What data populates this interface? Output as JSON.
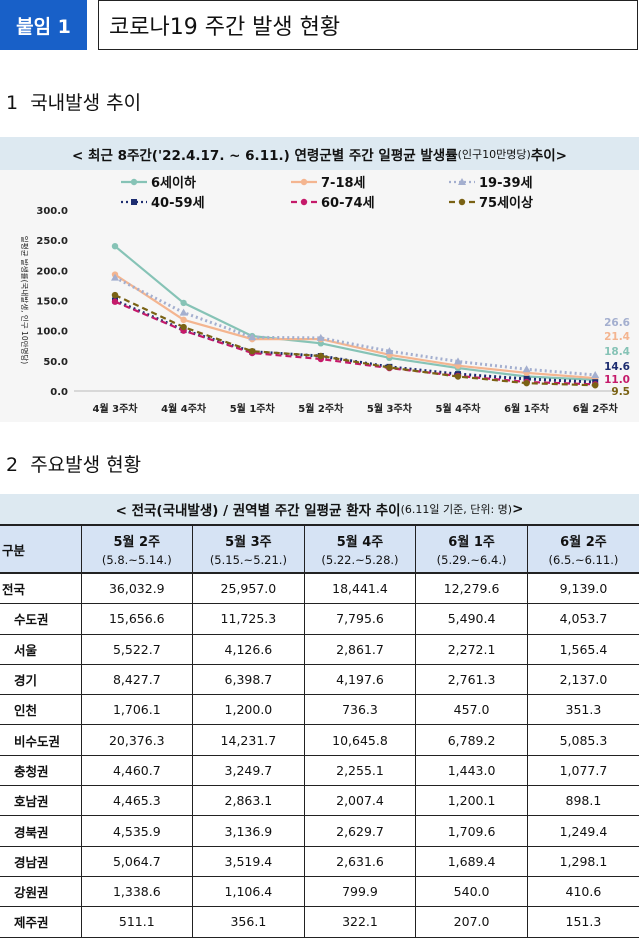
{
  "header": {
    "badge": "붙임 1",
    "title": "코로나19 주간 발생 현황"
  },
  "section1": {
    "number": "1",
    "title": "국내발생 추이"
  },
  "section2": {
    "number": "2",
    "title": "주요발생 현황"
  },
  "chart_panel": {
    "title_main": "< 최근 8주간('22.4.17. ~ 6.11.) 연령군별 주간 일평균 발생률",
    "title_small": "(인구10만명당)",
    "title_end": " 추이>"
  },
  "chart_data": {
    "type": "line",
    "ylabel": "일평균 발생률(국내발생, 인구 10만명당)",
    "ylim": [
      0,
      300
    ],
    "yticks": [
      "0.0",
      "50.0",
      "100.0",
      "150.0",
      "200.0",
      "250.0",
      "300.0"
    ],
    "categories": [
      "4월 3주차",
      "4월 4주차",
      "5월 1주차",
      "5월 2주차",
      "5월 3주차",
      "5월 4주차",
      "6월 1주차",
      "6월 2주차"
    ],
    "series": [
      {
        "name": "6세이하",
        "color": "#86c3b6",
        "dash": "solid",
        "marker": "circle",
        "values": [
          240,
          146,
          91,
          79,
          55,
          38,
          24,
          18.4
        ]
      },
      {
        "name": "7-18세",
        "color": "#f4b590",
        "dash": "solid",
        "marker": "circle",
        "values": [
          193,
          118,
          86,
          86,
          60,
          42,
          30,
          21.4
        ]
      },
      {
        "name": "19-39세",
        "color": "#a4afcf",
        "dash": "dotted",
        "marker": "triangle",
        "values": [
          188,
          130,
          89,
          88,
          66,
          49,
          36,
          26.6
        ]
      },
      {
        "name": "40-59세",
        "color": "#1d2d70",
        "dash": "dotted",
        "marker": "square",
        "values": [
          150,
          101,
          65,
          58,
          40,
          28,
          20,
          14.6
        ]
      },
      {
        "name": "60-74세",
        "color": "#c51a6a",
        "dash": "dashed",
        "marker": "circle",
        "values": [
          148,
          100,
          63,
          53,
          38,
          25,
          15,
          11.0
        ]
      },
      {
        "name": "75세이상",
        "color": "#7a6214",
        "dash": "dashed",
        "marker": "circle",
        "values": [
          159,
          106,
          66,
          58,
          39,
          24,
          13,
          9.5
        ]
      }
    ],
    "end_labels": [
      {
        "text": "26.6",
        "color": "#a4afcf"
      },
      {
        "text": "21.4",
        "color": "#f4b590"
      },
      {
        "text": "18.4",
        "color": "#86c3b6"
      },
      {
        "text": "14.6",
        "color": "#1d2d70"
      },
      {
        "text": "11.0",
        "color": "#c51a6a"
      },
      {
        "text": "9.5",
        "color": "#7a6214"
      }
    ]
  },
  "table": {
    "title_main": "< 전국(국내발생) / 권역별 주간 일평균 환자 추이 ",
    "title_small": "(6.11일 기준, 단위: 명)",
    "title_end": " >",
    "corner": "구분",
    "columns": [
      {
        "week": "5월 2주",
        "range": "(5.8.~5.14.)"
      },
      {
        "week": "5월 3주",
        "range": "(5.15.~5.21.)"
      },
      {
        "week": "5월 4주",
        "range": "(5.22.~5.28.)"
      },
      {
        "week": "6월 1주",
        "range": "(5.29.~6.4.)"
      },
      {
        "week": "6월 2주",
        "range": "(6.5.~6.11.)"
      }
    ],
    "rows": [
      {
        "name": "전국",
        "values": [
          "36,032.9",
          "25,957.0",
          "18,441.4",
          "12,279.6",
          "9,139.0"
        ]
      },
      {
        "name": "수도권",
        "values": [
          "15,656.6",
          "11,725.3",
          "7,795.6",
          "5,490.4",
          "4,053.7"
        ]
      },
      {
        "name": "서울",
        "values": [
          "5,522.7",
          "4,126.6",
          "2,861.7",
          "2,272.1",
          "1,565.4"
        ]
      },
      {
        "name": "경기",
        "values": [
          "8,427.7",
          "6,398.7",
          "4,197.6",
          "2,761.3",
          "2,137.0"
        ]
      },
      {
        "name": "인천",
        "values": [
          "1,706.1",
          "1,200.0",
          "736.3",
          "457.0",
          "351.3"
        ]
      },
      {
        "name": "비수도권",
        "values": [
          "20,376.3",
          "14,231.7",
          "10,645.8",
          "6,789.2",
          "5,085.3"
        ]
      },
      {
        "name": "충청권",
        "values": [
          "4,460.7",
          "3,249.7",
          "2,255.1",
          "1,443.0",
          "1,077.7"
        ]
      },
      {
        "name": "호남권",
        "values": [
          "4,465.3",
          "2,863.1",
          "2,007.4",
          "1,200.1",
          "898.1"
        ]
      },
      {
        "name": "경북권",
        "values": [
          "4,535.9",
          "3,136.9",
          "2,629.7",
          "1,709.6",
          "1,249.4"
        ]
      },
      {
        "name": "경남권",
        "values": [
          "5,064.7",
          "3,519.4",
          "2,631.6",
          "1,689.4",
          "1,298.1"
        ]
      },
      {
        "name": "강원권",
        "values": [
          "1,338.6",
          "1,106.4",
          "799.9",
          "540.0",
          "410.6"
        ]
      },
      {
        "name": "제주권",
        "values": [
          "511.1",
          "356.1",
          "322.1",
          "207.0",
          "151.3"
        ]
      }
    ]
  }
}
